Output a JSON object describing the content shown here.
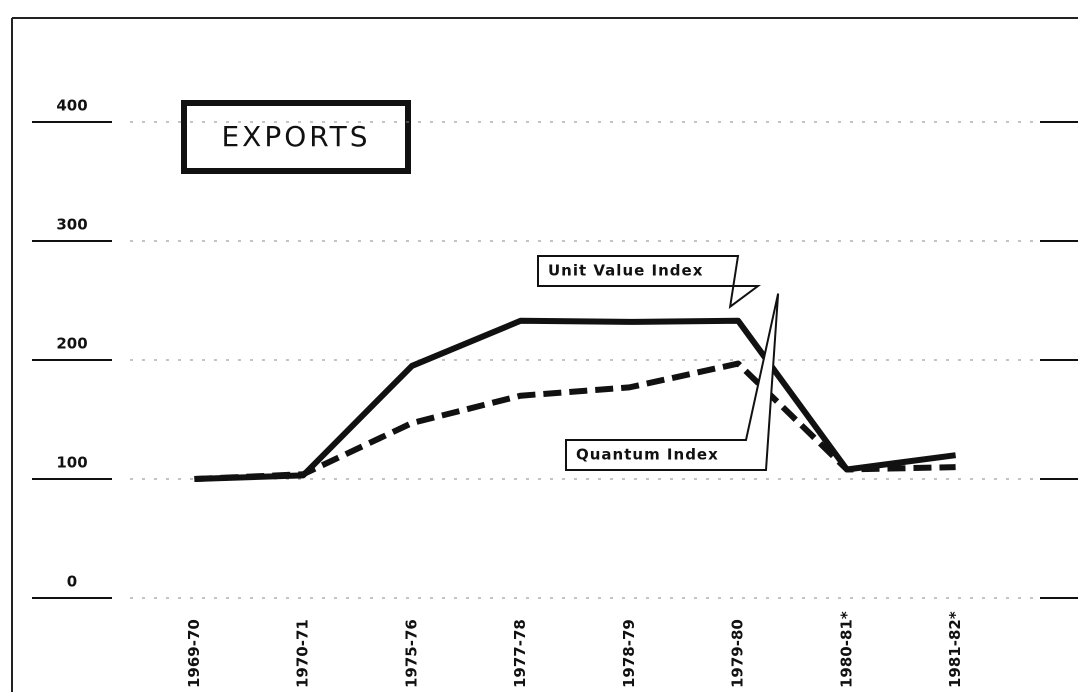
{
  "chart_data": {
    "type": "line",
    "title": "EXPORTS",
    "categories": [
      "1969-70",
      "1970-71",
      "1975-76",
      "1977-78",
      "1978-79",
      "1979-80",
      "1980-81*",
      "1981-82*"
    ],
    "series": [
      {
        "name": "Unit Value Index",
        "color": "#111111",
        "style": "solid",
        "values": [
          100,
          103,
          195,
          233,
          232,
          233,
          108,
          120
        ]
      },
      {
        "name": "Quantum Index",
        "color": "#111111",
        "style": "dashed",
        "values": [
          100,
          104,
          147,
          170,
          177,
          197,
          108,
          110
        ]
      }
    ],
    "ylim": [
      0,
      400
    ],
    "yticks": [
      0,
      100,
      200,
      300,
      400
    ],
    "grid": true
  }
}
